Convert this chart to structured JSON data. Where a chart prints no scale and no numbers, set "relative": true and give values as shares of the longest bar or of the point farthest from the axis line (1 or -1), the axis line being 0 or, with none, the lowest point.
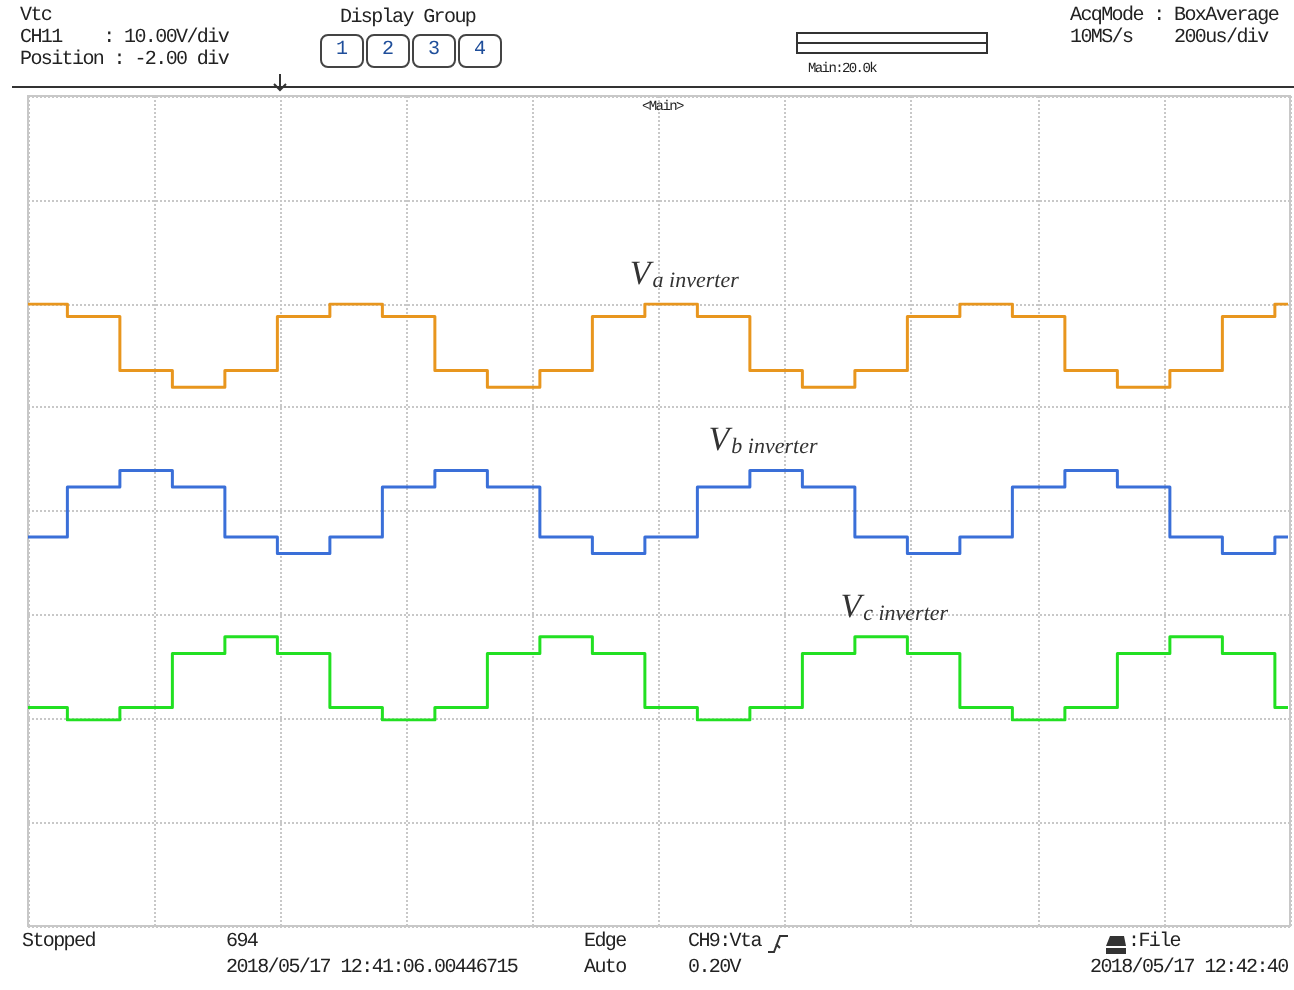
{
  "chart_data": {
    "type": "step",
    "relative": true,
    "grid": true,
    "legend": false,
    "marker": "none",
    "categories": [
      null,
      null,
      null,
      null,
      null,
      null,
      null,
      null,
      null,
      null,
      null,
      null,
      null,
      null,
      null,
      null,
      null,
      null,
      null,
      null,
      null,
      null,
      null,
      null,
      null,
      null,
      null,
      null,
      null,
      null,
      null,
      null,
      null,
      null,
      null,
      null,
      null,
      null,
      null,
      null,
      null,
      null,
      null,
      null,
      null,
      null,
      null,
      null,
      null
    ],
    "series": [
      {
        "name": "V$_{a inverter}$",
        "color": "#e8961e",
        "values": [
          1,
          1,
          0.97,
          0.97,
          0.84,
          0.84,
          0.8,
          0.8,
          0.84,
          0.84,
          0.97,
          0.97,
          1,
          1,
          0.97,
          0.97,
          0.84,
          0.84,
          0.8,
          0.8,
          0.84,
          0.84,
          0.97,
          0.97,
          1,
          1,
          0.97,
          0.97,
          0.84,
          0.84,
          0.8,
          0.8,
          0.84,
          0.84,
          0.97,
          0.97,
          1,
          1,
          0.97,
          0.97,
          0.84,
          0.84,
          0.8,
          0.8,
          0.84,
          0.84,
          0.97,
          0.97,
          1
        ]
      },
      {
        "name": "V$_{b inverter}$",
        "color": "#3a6fd8",
        "values": [
          0.44,
          0.44,
          0.56,
          0.56,
          0.6,
          0.6,
          0.56,
          0.56,
          0.44,
          0.44,
          0.4,
          0.4,
          0.44,
          0.44,
          0.56,
          0.56,
          0.6,
          0.6,
          0.56,
          0.56,
          0.44,
          0.44,
          0.4,
          0.4,
          0.44,
          0.44,
          0.56,
          0.56,
          0.6,
          0.6,
          0.56,
          0.56,
          0.44,
          0.44,
          0.4,
          0.4,
          0.44,
          0.44,
          0.56,
          0.56,
          0.6,
          0.6,
          0.56,
          0.56,
          0.44,
          0.44,
          0.4,
          0.4,
          0.44
        ]
      },
      {
        "name": "V$_{c inverter}$",
        "color": "#22e022",
        "values": [
          0.03,
          0.03,
          0,
          0,
          0.03,
          0.03,
          0.16,
          0.16,
          0.2,
          0.2,
          0.16,
          0.16,
          0.03,
          0.03,
          0,
          0,
          0.03,
          0.03,
          0.16,
          0.16,
          0.2,
          0.2,
          0.16,
          0.16,
          0.03,
          0.03,
          0,
          0,
          0.03,
          0.03,
          0.16,
          0.16,
          0.2,
          0.2,
          0.16,
          0.16,
          0.03,
          0.03,
          0,
          0,
          0.03,
          0.03,
          0.16,
          0.16,
          0.2,
          0.2,
          0.16,
          0.16,
          0.03
        ]
      }
    ],
    "annotations": [
      "Vtc",
      "CH11    : 10.00V/div",
      "Position : -2.00 div",
      "Display Group",
      "1",
      "2",
      "3",
      "4",
      "Main:20.0k",
      "AcqMode : BoxAverage",
      "10MS/s",
      "200us/div",
      "<Main>",
      "Stopped",
      "694",
      "2018/05/17 12:41:06.00446715",
      "Edge",
      "Auto",
      "CH9:Vta",
      "0.20V",
      ":File",
      "2018/05/17 12:42:40"
    ]
  }
}
